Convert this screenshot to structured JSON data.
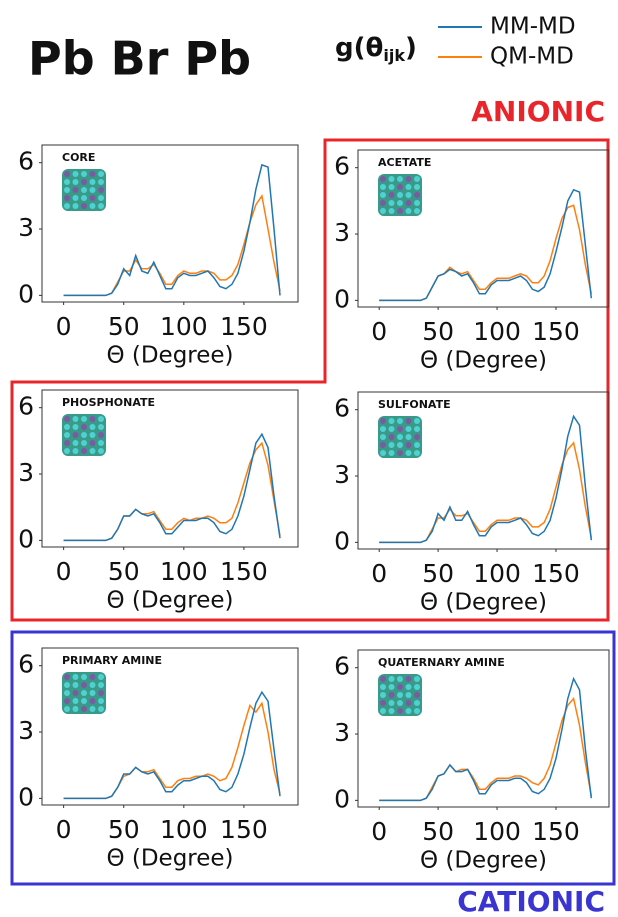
{
  "title": "Pb Br Pb",
  "legend_title": {
    "text": "g(θ",
    "subscript": "ijk",
    "close": ")"
  },
  "legend": [
    {
      "name": "MM-MD",
      "color": "#1f77b4"
    },
    {
      "name": "QM-MD",
      "color": "#ff7f0e"
    }
  ],
  "group_labels": {
    "anionic": "ANIONIC",
    "cationic": "CATIONIC"
  },
  "chart_data": [
    {
      "type": "line",
      "title": "CORE",
      "x_label": "Θ (Degree)",
      "x": [
        0,
        5,
        10,
        15,
        20,
        25,
        30,
        35,
        40,
        45,
        50,
        55,
        60,
        65,
        70,
        75,
        80,
        85,
        90,
        95,
        100,
        105,
        110,
        115,
        120,
        125,
        130,
        135,
        140,
        145,
        150,
        155,
        160,
        165,
        170,
        175,
        180
      ],
      "series": [
        {
          "color": "#1f77b4",
          "values": [
            0,
            0,
            0,
            0,
            0,
            0,
            0,
            0,
            0.1,
            0.5,
            1.2,
            0.9,
            1.8,
            1.1,
            1.0,
            1.5,
            0.9,
            0.3,
            0.3,
            0.8,
            1.0,
            0.9,
            0.9,
            1.0,
            1.1,
            0.8,
            0.4,
            0.3,
            0.5,
            1.0,
            2.0,
            3.3,
            4.8,
            5.9,
            5.8,
            3.0,
            0
          ]
        },
        {
          "color": "#ff7f0e",
          "values": [
            0,
            0,
            0,
            0,
            0,
            0,
            0,
            0,
            0.1,
            0.6,
            1.1,
            1.1,
            1.6,
            1.2,
            1.2,
            1.4,
            1.0,
            0.5,
            0.5,
            0.9,
            1.1,
            1.0,
            1.0,
            1.1,
            1.1,
            1.0,
            0.7,
            0.7,
            0.9,
            1.4,
            2.3,
            3.3,
            4.1,
            4.5,
            3.0,
            1.5,
            0.2
          ]
        }
      ],
      "xlim": [
        -18,
        195
      ],
      "ylim": [
        -0.3,
        6.8
      ],
      "xticks": [
        0,
        50,
        100,
        150
      ],
      "yticks": [
        0,
        3,
        6
      ]
    },
    {
      "type": "line",
      "title": "ACETATE",
      "x_label": "Θ (Degree)",
      "x": [
        0,
        5,
        10,
        15,
        20,
        25,
        30,
        35,
        40,
        45,
        50,
        55,
        60,
        65,
        70,
        75,
        80,
        85,
        90,
        95,
        100,
        105,
        110,
        115,
        120,
        125,
        130,
        135,
        140,
        145,
        150,
        155,
        160,
        165,
        170,
        175,
        180
      ],
      "series": [
        {
          "color": "#1f77b4",
          "values": [
            0,
            0,
            0,
            0,
            0,
            0,
            0,
            0,
            0.1,
            0.6,
            1.1,
            1.2,
            1.4,
            1.3,
            1.1,
            1.2,
            0.8,
            0.3,
            0.3,
            0.7,
            0.9,
            0.9,
            0.9,
            1.0,
            1.1,
            0.9,
            0.5,
            0.4,
            0.6,
            1.2,
            2.2,
            3.3,
            4.5,
            5.0,
            4.9,
            2.5,
            0.1
          ]
        },
        {
          "color": "#ff7f0e",
          "values": [
            0,
            0,
            0,
            0,
            0,
            0,
            0,
            0,
            0.1,
            0.6,
            1.1,
            1.2,
            1.5,
            1.3,
            1.2,
            1.3,
            0.9,
            0.5,
            0.5,
            0.8,
            1.0,
            1.0,
            1.0,
            1.1,
            1.2,
            1.1,
            0.8,
            0.8,
            1.1,
            1.8,
            2.8,
            3.7,
            4.2,
            4.3,
            3.2,
            1.6,
            0.3
          ]
        }
      ],
      "xlim": [
        -18,
        195
      ],
      "ylim": [
        -0.3,
        6.8
      ],
      "xticks": [
        0,
        50,
        100,
        150
      ],
      "yticks": [
        0,
        3,
        6
      ]
    },
    {
      "type": "line",
      "title": "PHOSPHONATE",
      "x_label": "Θ (Degree)",
      "x": [
        0,
        5,
        10,
        15,
        20,
        25,
        30,
        35,
        40,
        45,
        50,
        55,
        60,
        65,
        70,
        75,
        80,
        85,
        90,
        95,
        100,
        105,
        110,
        115,
        120,
        125,
        130,
        135,
        140,
        145,
        150,
        155,
        160,
        165,
        170,
        175,
        180
      ],
      "series": [
        {
          "color": "#1f77b4",
          "values": [
            0,
            0,
            0,
            0,
            0,
            0,
            0,
            0,
            0.1,
            0.5,
            1.1,
            1.1,
            1.4,
            1.2,
            1.1,
            1.2,
            0.8,
            0.3,
            0.3,
            0.6,
            0.9,
            0.9,
            0.9,
            1.0,
            1.0,
            0.8,
            0.4,
            0.3,
            0.5,
            1.1,
            2.0,
            3.2,
            4.4,
            4.8,
            4.2,
            2.0,
            0.1
          ]
        },
        {
          "color": "#ff7f0e",
          "values": [
            0,
            0,
            0,
            0,
            0,
            0,
            0,
            0,
            0.1,
            0.5,
            1.1,
            1.1,
            1.4,
            1.2,
            1.2,
            1.3,
            0.9,
            0.5,
            0.5,
            0.8,
            1.0,
            0.9,
            1.0,
            1.0,
            1.1,
            1.0,
            0.8,
            0.8,
            1.0,
            1.7,
            2.6,
            3.5,
            4.1,
            4.4,
            3.4,
            1.8,
            0.2
          ]
        }
      ],
      "xlim": [
        -18,
        195
      ],
      "ylim": [
        -0.3,
        6.8
      ],
      "xticks": [
        0,
        50,
        100,
        150
      ],
      "yticks": [
        0,
        3,
        6
      ]
    },
    {
      "type": "line",
      "title": "SULFONATE",
      "x_label": "Θ (Degree)",
      "x": [
        0,
        5,
        10,
        15,
        20,
        25,
        30,
        35,
        40,
        45,
        50,
        55,
        60,
        65,
        70,
        75,
        80,
        85,
        90,
        95,
        100,
        105,
        110,
        115,
        120,
        125,
        130,
        135,
        140,
        145,
        150,
        155,
        160,
        165,
        170,
        175,
        180
      ],
      "series": [
        {
          "color": "#1f77b4",
          "values": [
            0,
            0,
            0,
            0,
            0,
            0,
            0,
            0,
            0.1,
            0.5,
            1.3,
            1.0,
            1.6,
            1.0,
            1.0,
            1.4,
            0.8,
            0.3,
            0.3,
            0.7,
            0.9,
            0.9,
            0.9,
            1.0,
            1.1,
            0.8,
            0.4,
            0.3,
            0.5,
            1.0,
            2.0,
            3.3,
            4.8,
            5.7,
            5.3,
            2.5,
            0.1
          ]
        },
        {
          "color": "#ff7f0e",
          "values": [
            0,
            0,
            0,
            0,
            0,
            0,
            0,
            0,
            0.1,
            0.6,
            1.1,
            1.1,
            1.5,
            1.2,
            1.2,
            1.3,
            0.9,
            0.5,
            0.5,
            0.8,
            1.0,
            1.0,
            1.0,
            1.1,
            1.1,
            1.0,
            0.7,
            0.7,
            0.9,
            1.5,
            2.5,
            3.5,
            4.2,
            4.5,
            3.3,
            1.6,
            0.2
          ]
        }
      ],
      "xlim": [
        -18,
        195
      ],
      "ylim": [
        -0.3,
        6.8
      ],
      "xticks": [
        0,
        50,
        100,
        150
      ],
      "yticks": [
        0,
        3,
        6
      ]
    },
    {
      "type": "line",
      "title": "PRIMARY AMINE",
      "x_label": "Θ (Degree)",
      "x": [
        0,
        5,
        10,
        15,
        20,
        25,
        30,
        35,
        40,
        45,
        50,
        55,
        60,
        65,
        70,
        75,
        80,
        85,
        90,
        95,
        100,
        105,
        110,
        115,
        120,
        125,
        130,
        135,
        140,
        145,
        150,
        155,
        160,
        165,
        170,
        175,
        180
      ],
      "series": [
        {
          "color": "#1f77b4",
          "values": [
            0,
            0,
            0,
            0,
            0,
            0,
            0,
            0,
            0.1,
            0.5,
            1.1,
            1.1,
            1.4,
            1.2,
            1.1,
            1.2,
            0.8,
            0.3,
            0.3,
            0.6,
            0.8,
            0.8,
            0.9,
            1.0,
            1.0,
            0.8,
            0.4,
            0.3,
            0.5,
            1.1,
            2.0,
            3.2,
            4.3,
            4.8,
            4.4,
            2.2,
            0.1
          ]
        },
        {
          "color": "#ff7f0e",
          "values": [
            0,
            0,
            0,
            0,
            0,
            0,
            0,
            0,
            0.1,
            0.5,
            1.0,
            1.1,
            1.4,
            1.2,
            1.2,
            1.3,
            0.9,
            0.5,
            0.5,
            0.8,
            0.9,
            0.9,
            1.0,
            1.0,
            1.1,
            1.0,
            0.8,
            0.9,
            1.4,
            2.3,
            3.3,
            4.2,
            3.9,
            4.3,
            3.0,
            1.3,
            0.2
          ]
        }
      ],
      "xlim": [
        -18,
        195
      ],
      "ylim": [
        -0.3,
        6.8
      ],
      "xticks": [
        0,
        50,
        100,
        150
      ],
      "yticks": [
        0,
        3,
        6
      ]
    },
    {
      "type": "line",
      "title": "QUATERNARY AMINE",
      "x_label": "Θ (Degree)",
      "x": [
        0,
        5,
        10,
        15,
        20,
        25,
        30,
        35,
        40,
        45,
        50,
        55,
        60,
        65,
        70,
        75,
        80,
        85,
        90,
        95,
        100,
        105,
        110,
        115,
        120,
        125,
        130,
        135,
        140,
        145,
        150,
        155,
        160,
        165,
        170,
        175,
        180
      ],
      "series": [
        {
          "color": "#1f77b4",
          "values": [
            0,
            0,
            0,
            0,
            0,
            0,
            0,
            0,
            0.1,
            0.5,
            1.1,
            1.2,
            1.6,
            1.3,
            1.3,
            1.4,
            0.9,
            0.3,
            0.3,
            0.7,
            0.9,
            0.9,
            0.9,
            1.0,
            1.0,
            0.8,
            0.4,
            0.3,
            0.5,
            1.0,
            1.9,
            3.2,
            4.6,
            5.5,
            5.0,
            2.3,
            0.1
          ]
        },
        {
          "color": "#ff7f0e",
          "values": [
            0,
            0,
            0,
            0,
            0,
            0,
            0,
            0,
            0.1,
            0.6,
            1.1,
            1.2,
            1.6,
            1.3,
            1.4,
            1.4,
            1.0,
            0.5,
            0.5,
            0.8,
            1.0,
            1.0,
            1.0,
            1.1,
            1.1,
            1.0,
            0.8,
            0.7,
            1.0,
            1.6,
            2.6,
            3.6,
            4.3,
            4.6,
            3.4,
            1.7,
            0.2
          ]
        }
      ],
      "xlim": [
        -18,
        195
      ],
      "ylim": [
        -0.3,
        6.8
      ],
      "xticks": [
        0,
        50,
        100,
        150
      ],
      "yticks": [
        0,
        3,
        6
      ]
    }
  ]
}
